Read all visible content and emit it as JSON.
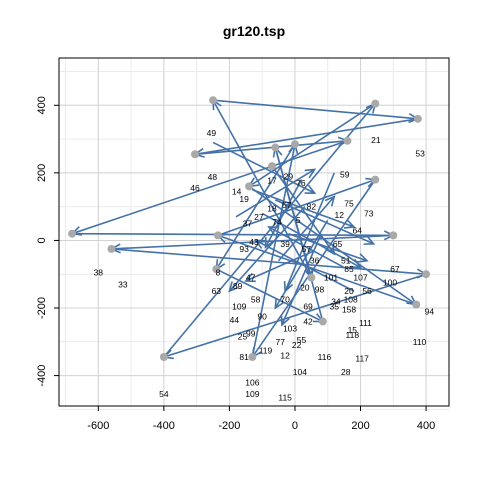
{
  "chart_data": {
    "type": "scatter",
    "title": "gr120.tsp",
    "xlabel": "",
    "ylabel": "",
    "xlim": [
      -720,
      470
    ],
    "ylim": [
      -490,
      540
    ],
    "x_ticks": [
      -600,
      -400,
      -200,
      0,
      200,
      400
    ],
    "y_ticks": [
      -400,
      -200,
      0,
      200,
      400
    ],
    "x_tick_labels": [
      "-600",
      "-400",
      "-200",
      "0",
      "200",
      "400"
    ],
    "y_tick_labels": [
      "-400",
      "-200",
      "0",
      "200",
      "400"
    ],
    "grid": true,
    "colors": {
      "arrow": "#4472a8",
      "point": "#a9a9a9",
      "grid": "#d3d3d3",
      "frame": "#000000"
    },
    "points": [
      {
        "x": -250,
        "y": 415
      },
      {
        "x": -305,
        "y": 255
      },
      {
        "x": 375,
        "y": 360
      },
      {
        "x": 245,
        "y": 405
      },
      {
        "x": 0,
        "y": 285
      },
      {
        "x": -60,
        "y": 275
      },
      {
        "x": 160,
        "y": 295
      },
      {
        "x": -680,
        "y": 20
      },
      {
        "x": -560,
        "y": -25
      },
      {
        "x": -400,
        "y": -345
      },
      {
        "x": 300,
        "y": 15
      },
      {
        "x": 400,
        "y": -100
      },
      {
        "x": 370,
        "y": -190
      },
      {
        "x": -240,
        "y": -85
      },
      {
        "x": -235,
        "y": 15
      },
      {
        "x": -70,
        "y": 220
      },
      {
        "x": 245,
        "y": 180
      },
      {
        "x": 85,
        "y": -240
      },
      {
        "x": 50,
        "y": -110
      },
      {
        "x": -130,
        "y": -345
      },
      {
        "x": -140,
        "y": 160
      }
    ],
    "arrow_segments": [
      [
        -250,
        415,
        375,
        360
      ],
      [
        375,
        360,
        -305,
        255
      ],
      [
        -305,
        255,
        160,
        295
      ],
      [
        160,
        295,
        -680,
        20
      ],
      [
        -680,
        20,
        300,
        15
      ],
      [
        300,
        15,
        -560,
        -25
      ],
      [
        -560,
        -25,
        400,
        -100
      ],
      [
        400,
        -100,
        -400,
        -345
      ],
      [
        -400,
        -345,
        245,
        405
      ],
      [
        245,
        405,
        -140,
        160
      ],
      [
        -140,
        160,
        370,
        -190
      ],
      [
        370,
        -190,
        -235,
        15
      ],
      [
        -235,
        15,
        245,
        180
      ],
      [
        245,
        180,
        -130,
        -345
      ],
      [
        -130,
        -345,
        0,
        285
      ],
      [
        0,
        285,
        -240,
        -85
      ],
      [
        -240,
        -85,
        85,
        -240
      ],
      [
        85,
        -240,
        -60,
        275
      ],
      [
        -60,
        275,
        50,
        -110
      ],
      [
        50,
        -110,
        -250,
        415
      ],
      [
        -250,
        290,
        60,
        140
      ],
      [
        -70,
        220,
        120,
        -40
      ],
      [
        -130,
        150,
        180,
        40
      ],
      [
        -100,
        80,
        200,
        -80
      ],
      [
        30,
        100,
        -200,
        -150
      ],
      [
        100,
        60,
        -60,
        -200
      ],
      [
        -20,
        20,
        220,
        -60
      ],
      [
        60,
        -30,
        -150,
        -120
      ],
      [
        150,
        -80,
        -80,
        40
      ],
      [
        -50,
        -60,
        120,
        130
      ],
      [
        20,
        180,
        -90,
        -20
      ],
      [
        120,
        200,
        -30,
        -150
      ],
      [
        -180,
        70,
        60,
        210
      ],
      [
        80,
        20,
        -40,
        -250
      ],
      [
        -60,
        120,
        240,
        -10
      ],
      [
        180,
        -150,
        -120,
        0
      ]
    ],
    "node_labels": [
      {
        "x": -255,
        "y": 318,
        "text": "49"
      },
      {
        "x": 247,
        "y": 298,
        "text": "21"
      },
      {
        "x": 382,
        "y": 258,
        "text": "53"
      },
      {
        "x": -252,
        "y": 188,
        "text": "48"
      },
      {
        "x": -305,
        "y": 155,
        "text": "46"
      },
      {
        "x": -178,
        "y": 145,
        "text": "14"
      },
      {
        "x": -70,
        "y": 178,
        "text": "17"
      },
      {
        "x": -20,
        "y": 190,
        "text": "29"
      },
      {
        "x": 18,
        "y": 170,
        "text": "76"
      },
      {
        "x": 152,
        "y": 195,
        "text": "59"
      },
      {
        "x": -155,
        "y": 122,
        "text": "19"
      },
      {
        "x": -70,
        "y": 95,
        "text": "18"
      },
      {
        "x": -25,
        "y": 105,
        "text": "57"
      },
      {
        "x": 50,
        "y": 100,
        "text": "82"
      },
      {
        "x": 165,
        "y": 110,
        "text": "75"
      },
      {
        "x": 135,
        "y": 75,
        "text": "12"
      },
      {
        "x": 225,
        "y": 80,
        "text": "73"
      },
      {
        "x": -110,
        "y": 70,
        "text": "27"
      },
      {
        "x": -55,
        "y": 55,
        "text": "74"
      },
      {
        "x": 10,
        "y": 60,
        "text": "5"
      },
      {
        "x": -145,
        "y": 50,
        "text": "37"
      },
      {
        "x": 190,
        "y": 30,
        "text": "64"
      },
      {
        "x": -125,
        "y": -5,
        "text": "43"
      },
      {
        "x": -155,
        "y": -25,
        "text": "93"
      },
      {
        "x": -30,
        "y": -10,
        "text": "39"
      },
      {
        "x": 35,
        "y": -25,
        "text": "57"
      },
      {
        "x": 130,
        "y": -10,
        "text": "65"
      },
      {
        "x": 60,
        "y": -60,
        "text": "36"
      },
      {
        "x": 155,
        "y": -60,
        "text": "51"
      },
      {
        "x": 165,
        "y": -85,
        "text": "85"
      },
      {
        "x": -235,
        "y": -95,
        "text": "8"
      },
      {
        "x": -135,
        "y": -110,
        "text": "47"
      },
      {
        "x": 110,
        "y": -110,
        "text": "101"
      },
      {
        "x": 200,
        "y": -110,
        "text": "107"
      },
      {
        "x": 305,
        "y": -85,
        "text": "67"
      },
      {
        "x": 290,
        "y": -125,
        "text": "100"
      },
      {
        "x": -600,
        "y": -95,
        "text": "38"
      },
      {
        "x": -525,
        "y": -130,
        "text": "33"
      },
      {
        "x": -240,
        "y": -150,
        "text": "63"
      },
      {
        "x": -175,
        "y": -135,
        "text": "89"
      },
      {
        "x": 30,
        "y": -140,
        "text": "20"
      },
      {
        "x": 75,
        "y": -145,
        "text": "98"
      },
      {
        "x": 165,
        "y": -150,
        "text": "20"
      },
      {
        "x": 220,
        "y": -150,
        "text": "56"
      },
      {
        "x": -120,
        "y": -175,
        "text": "58"
      },
      {
        "x": -30,
        "y": -175,
        "text": "70"
      },
      {
        "x": 125,
        "y": -180,
        "text": "34"
      },
      {
        "x": 170,
        "y": -175,
        "text": "108"
      },
      {
        "x": 120,
        "y": -195,
        "text": "35"
      },
      {
        "x": 165,
        "y": -205,
        "text": "158"
      },
      {
        "x": -170,
        "y": -195,
        "text": "109"
      },
      {
        "x": 40,
        "y": -195,
        "text": "69"
      },
      {
        "x": 410,
        "y": -210,
        "text": "94"
      },
      {
        "x": -100,
        "y": -225,
        "text": "90"
      },
      {
        "x": -185,
        "y": -235,
        "text": "44"
      },
      {
        "x": 40,
        "y": -240,
        "text": "42"
      },
      {
        "x": 215,
        "y": -245,
        "text": "111"
      },
      {
        "x": -15,
        "y": -260,
        "text": "103"
      },
      {
        "x": -135,
        "y": -275,
        "text": "99"
      },
      {
        "x": -160,
        "y": -285,
        "text": "25"
      },
      {
        "x": 175,
        "y": -265,
        "text": "15"
      },
      {
        "x": 175,
        "y": -280,
        "text": "118"
      },
      {
        "x": -45,
        "y": -300,
        "text": "77"
      },
      {
        "x": 20,
        "y": -295,
        "text": "55"
      },
      {
        "x": 5,
        "y": -310,
        "text": "22"
      },
      {
        "x": 380,
        "y": -300,
        "text": "110"
      },
      {
        "x": -90,
        "y": -325,
        "text": "119"
      },
      {
        "x": -30,
        "y": -340,
        "text": "12"
      },
      {
        "x": -155,
        "y": -345,
        "text": "81"
      },
      {
        "x": 90,
        "y": -345,
        "text": "116"
      },
      {
        "x": 205,
        "y": -350,
        "text": "117"
      },
      {
        "x": 15,
        "y": -390,
        "text": "104"
      },
      {
        "x": 155,
        "y": -390,
        "text": "28"
      },
      {
        "x": -130,
        "y": -420,
        "text": "106"
      },
      {
        "x": -400,
        "y": -455,
        "text": "54"
      },
      {
        "x": -130,
        "y": -455,
        "text": "109"
      },
      {
        "x": -30,
        "y": -465,
        "text": "115"
      }
    ]
  }
}
